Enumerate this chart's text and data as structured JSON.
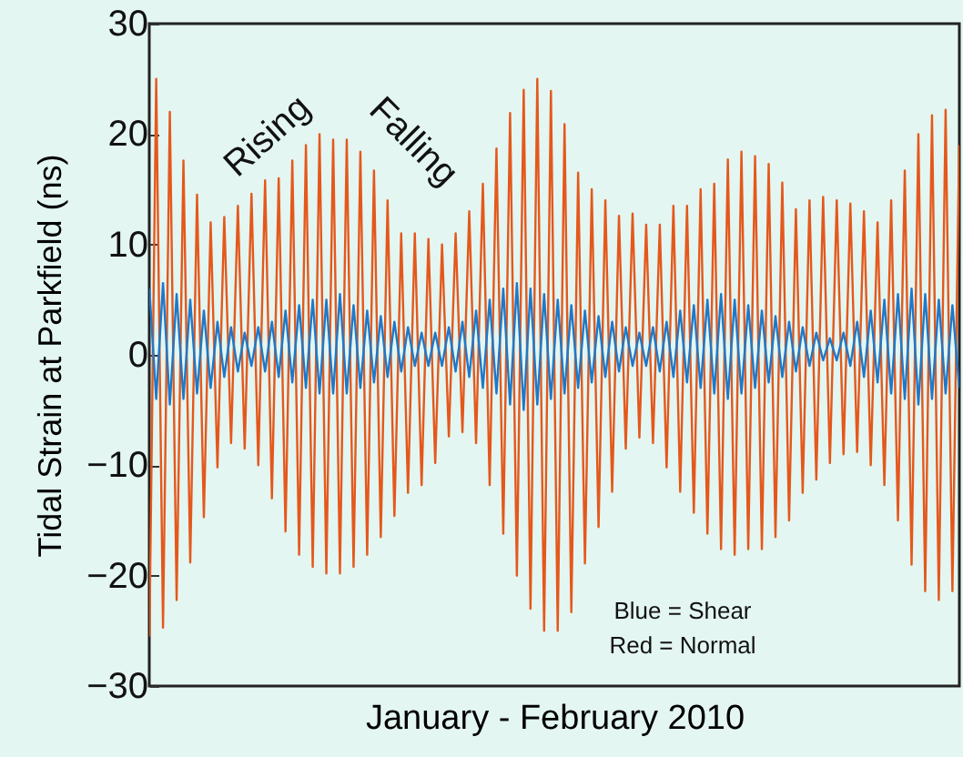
{
  "chart_data": {
    "type": "line",
    "xlabel": "January - February 2010",
    "ylabel": "Tidal Strain at Parkfield (ns)",
    "categories": [
      null,
      null,
      null,
      null,
      null,
      null,
      null,
      null,
      null,
      null,
      null,
      null,
      null,
      null,
      null,
      null,
      null,
      null,
      null,
      null,
      null,
      null,
      null,
      null,
      null,
      null,
      null,
      null,
      null,
      null,
      null,
      null,
      null,
      null,
      null,
      null,
      null,
      null,
      null,
      null,
      null,
      null,
      null,
      null,
      null,
      null,
      null,
      null,
      null,
      null,
      null,
      null,
      null,
      null,
      null,
      null,
      null,
      null,
      null,
      null,
      null,
      null,
      null,
      null,
      null,
      null,
      null,
      null,
      null,
      null,
      null,
      null,
      null,
      null,
      null,
      null,
      null,
      null,
      null,
      null,
      null,
      null,
      null,
      null,
      null,
      null,
      null,
      null,
      null,
      null,
      null,
      null,
      null,
      null,
      null,
      null,
      null,
      null,
      null,
      null,
      null,
      null,
      null,
      null,
      null,
      null,
      null,
      null,
      null,
      null,
      null,
      null,
      null,
      null,
      null,
      null,
      null,
      null,
      null,
      null
    ],
    "series": [
      {
        "color": "#e4581c",
        "values": [
          -25.5,
          25,
          -24.7,
          22,
          -22.2,
          17.6,
          -18.8,
          14.5,
          -14.7,
          12,
          -10.2,
          12.5,
          -8,
          13.5,
          -8.5,
          14.6,
          -10,
          15.8,
          -13,
          16,
          -16,
          17.6,
          -18.1,
          19,
          -19.2,
          20,
          -19.8,
          19.5,
          -19.8,
          19.5,
          -19.2,
          18.4,
          -18.1,
          16.7,
          -16.5,
          14,
          -14.6,
          11,
          -12.5,
          11,
          -11.8,
          10.5,
          -9.8,
          10,
          -7.4,
          11,
          -7,
          13,
          -8,
          15.5,
          -11.8,
          18.7,
          -16.2,
          21.9,
          -20,
          24,
          -23,
          25,
          -25,
          23.9,
          -25,
          20.9,
          -23.3,
          16.5,
          -18.9,
          15,
          -15.6,
          14,
          -12.4,
          12.6,
          -8.5,
          12.8,
          -7.5,
          11.8,
          -8,
          11.8,
          -10.2,
          13.5,
          -12.4,
          13.5,
          -14.3,
          15,
          -16.2,
          15.5,
          -17.6,
          17.7,
          -18.1,
          18.4,
          -17.6,
          18,
          -17.6,
          17.3,
          -16.5,
          15.6,
          -15,
          13.2,
          -12.5,
          14,
          -11.3,
          14.3,
          -9.8,
          14,
          -9,
          13.7,
          -8.8,
          13,
          -10,
          12,
          -11.8,
          14,
          -15,
          16.7,
          -19,
          20,
          -21.4,
          21.7,
          -22.2,
          22.2,
          -21.4,
          19
        ]
      },
      {
        "color": "#1f78c8",
        "values": [
          6,
          -4,
          6.5,
          -4.5,
          5.5,
          -4,
          5,
          -3.5,
          4,
          -3,
          3,
          -2,
          2.5,
          -1.5,
          2,
          -1,
          2.5,
          -1.5,
          3,
          -2,
          4,
          -2.5,
          4.5,
          -3,
          5,
          -3.5,
          5,
          -3.5,
          5.5,
          -3.5,
          4.5,
          -3,
          4,
          -2.5,
          3.5,
          -2,
          3,
          -1.5,
          2.5,
          -1,
          2,
          -1,
          2,
          -1,
          2.5,
          -1.5,
          3,
          -2,
          4,
          -3,
          5,
          -3.5,
          6,
          -4.5,
          6.5,
          -5,
          6,
          -4.5,
          5.5,
          -4,
          5,
          -3.5,
          4.5,
          -3,
          4,
          -2.5,
          3.5,
          -2,
          3,
          -1.5,
          2.5,
          -1,
          2,
          -1,
          2.5,
          -1.5,
          3,
          -2,
          4,
          -2.5,
          4.5,
          -3,
          5,
          -3.5,
          5.5,
          -4,
          5,
          -3.5,
          4.5,
          -3,
          4,
          -2.5,
          3.5,
          -2,
          3,
          -1.5,
          2.5,
          -1,
          2,
          -0.5,
          1.5,
          -0.5,
          2,
          -1,
          3,
          -2,
          4,
          -2.5,
          5,
          -3.5,
          5.5,
          -4,
          6,
          -4.5,
          5.5,
          -4,
          5,
          -3.5,
          4.5,
          -3
        ]
      }
    ],
    "ylim": [
      -30,
      30
    ],
    "yticks": [
      -30,
      -20,
      -10,
      0,
      10,
      20,
      30
    ],
    "line_style": "solid",
    "marker": "none",
    "annotations": [
      "Rising",
      "Falling",
      "Blue = Shear",
      "Red = Normal"
    ]
  }
}
